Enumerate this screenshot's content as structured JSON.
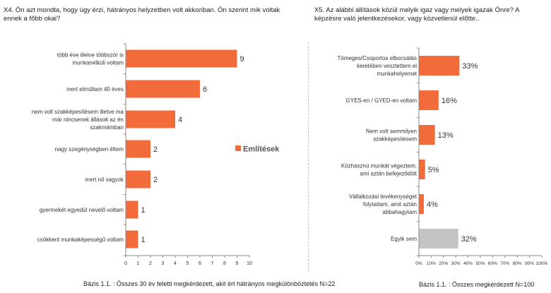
{
  "left": {
    "question": "X4. Ön azt mondta, hogy úgy érzi, hátrányos helyzetben volt akkoriban. Ön szerint mik voltak ennek a főbb okai?",
    "footer": "Bázis 1.1. : Összes 30 év feletti megkérdezett, akit ért hátrányos megkülönböztetés  N=22",
    "legend_label": "Említések"
  },
  "right": {
    "question": "X5. Az alábbi állítások közül melyik igaz vagy melyek igazak Önre? A képzésre való jelentkezésekor, vagy közvetlenül előtte..",
    "footer": "Bázis 1.1. : Összes megkérdezett N=100"
  },
  "colors": {
    "bar": "#f26b3a",
    "bar_grey": "#c4c4c4",
    "axis": "#888888"
  },
  "chart_data": [
    {
      "type": "bar",
      "orientation": "horizontal",
      "categories": [
        [
          "több éve illetve többször is",
          "munkanélküli voltam"
        ],
        [
          "mert elmúltam 40 éves"
        ],
        [
          "nem volt szakképesítésem illetve ma",
          "már nincsenek állások az én",
          "szakmámban"
        ],
        [
          "nagy szegénységben éltem"
        ],
        [
          "mert nő vagyok"
        ],
        [
          "gyermekét egyedül nevelő voltam"
        ],
        [
          "csökkent munkaképességű voltam"
        ]
      ],
      "values": [
        9,
        6,
        4,
        2,
        2,
        1,
        1
      ],
      "value_labels": [
        "9",
        "6",
        "4",
        "2",
        "2",
        "1",
        "1"
      ],
      "xlim": [
        0,
        10
      ],
      "xticks": [
        "0",
        "1",
        "2",
        "3",
        "4",
        "5",
        "6",
        "7",
        "8",
        "9",
        "10"
      ],
      "legend": "right",
      "series": [
        {
          "name": "Említések"
        }
      ]
    },
    {
      "type": "bar",
      "orientation": "horizontal",
      "categories": [
        [
          "Tömeges/Csoportos elbocsátás",
          "keretében vesztettem el",
          "munkahelyemet"
        ],
        [
          "GYES-en / GYED-en voltam"
        ],
        [
          "Nem volt semmilyen",
          "szakképesítésem"
        ],
        [
          "Közhasznú munkát végeztem,",
          "ami aztán befejeződött"
        ],
        [
          "Vállalkozási tevékenységet",
          "folytattam, amit aztán",
          "abbahagytam"
        ],
        [
          "Egyik sem"
        ]
      ],
      "values": [
        33,
        16,
        13,
        5,
        4,
        32
      ],
      "value_labels": [
        "33%",
        "16%",
        "13%",
        "5%",
        "4%",
        "32%"
      ],
      "highlight": [
        false,
        false,
        false,
        false,
        false,
        true
      ],
      "xlim": [
        0,
        100
      ],
      "xticks": [
        "0%",
        "10%",
        "20%",
        "30%",
        "40%",
        "50%",
        "60%",
        "70%",
        "80%",
        "90%",
        "100%"
      ]
    }
  ]
}
